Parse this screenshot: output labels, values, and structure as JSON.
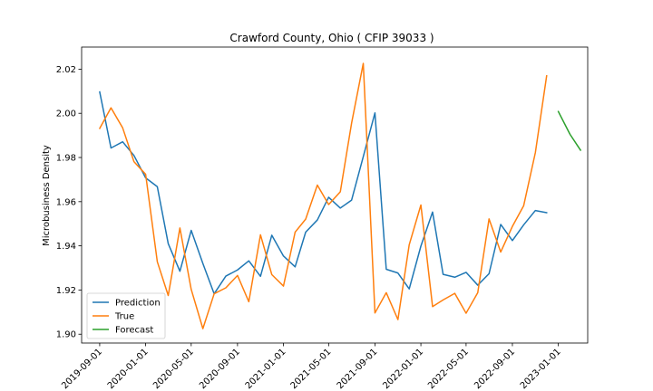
{
  "chart_data": {
    "type": "line",
    "title": "Crawford County, Ohio ( CFIP 39033 )",
    "xlabel": "",
    "ylabel": "Microbusiness Density",
    "x_axis_type": "date",
    "xlim": [
      "2019-07-15",
      "2023-03-20"
    ],
    "ylim": [
      1.896,
      2.03
    ],
    "yticks": [
      1.9,
      1.92,
      1.94,
      1.96,
      1.98,
      2.0,
      2.02
    ],
    "ytick_labels": [
      "1.90",
      "1.92",
      "1.94",
      "1.96",
      "1.98",
      "2.00",
      "2.02"
    ],
    "xticks": [
      "2019-09-01",
      "2020-01-01",
      "2020-05-01",
      "2020-09-01",
      "2021-01-01",
      "2021-05-01",
      "2021-09-01",
      "2022-01-01",
      "2022-05-01",
      "2022-09-01",
      "2023-01-01"
    ],
    "xtick_labels": [
      "2019-09-01",
      "2020-01-01",
      "2020-05-01",
      "2020-09-01",
      "2021-01-01",
      "2021-05-01",
      "2021-09-01",
      "2022-01-01",
      "2022-05-01",
      "2022-09-01",
      "2023-01-01"
    ],
    "grid": false,
    "legend_position": "lower-left",
    "series": [
      {
        "name": "Prediction",
        "color": "#1f77b4",
        "x": [
          "2019-09-01",
          "2019-10-01",
          "2019-11-01",
          "2019-12-01",
          "2020-01-01",
          "2020-02-01",
          "2020-03-01",
          "2020-04-01",
          "2020-05-01",
          "2020-06-01",
          "2020-07-01",
          "2020-08-01",
          "2020-09-01",
          "2020-10-01",
          "2020-11-01",
          "2020-12-01",
          "2021-01-01",
          "2021-02-01",
          "2021-03-01",
          "2021-04-01",
          "2021-05-01",
          "2021-06-01",
          "2021-07-01",
          "2021-08-01",
          "2021-09-01",
          "2021-10-01",
          "2021-11-01",
          "2021-12-01",
          "2022-01-01",
          "2022-02-01",
          "2022-03-01",
          "2022-04-01",
          "2022-05-01",
          "2022-06-01",
          "2022-07-01",
          "2022-08-01",
          "2022-09-01",
          "2022-10-01",
          "2022-11-01",
          "2022-12-01"
        ],
        "y": [
          2.0097,
          1.9843,
          1.9871,
          1.9809,
          1.9708,
          1.9668,
          1.941,
          1.9285,
          1.947,
          1.932,
          1.9183,
          1.9263,
          1.9291,
          1.9332,
          1.9262,
          1.9448,
          1.9354,
          1.9305,
          1.9462,
          1.9517,
          1.962,
          1.9571,
          1.9607,
          1.9804,
          2.0002,
          1.9294,
          1.9277,
          1.9205,
          1.9399,
          1.9553,
          1.9271,
          1.9258,
          1.928,
          1.9222,
          1.9274,
          1.9497,
          1.9424,
          1.9495,
          1.956,
          1.955
        ]
      },
      {
        "name": "True",
        "color": "#ff7f0e",
        "x": [
          "2019-09-01",
          "2019-10-01",
          "2019-11-01",
          "2019-12-01",
          "2020-01-01",
          "2020-02-01",
          "2020-03-01",
          "2020-04-01",
          "2020-05-01",
          "2020-06-01",
          "2020-07-01",
          "2020-08-01",
          "2020-09-01",
          "2020-10-01",
          "2020-11-01",
          "2020-12-01",
          "2021-01-01",
          "2021-02-01",
          "2021-03-01",
          "2021-04-01",
          "2021-05-01",
          "2021-06-01",
          "2021-07-01",
          "2021-08-01",
          "2021-09-01",
          "2021-10-01",
          "2021-11-01",
          "2021-12-01",
          "2022-01-01",
          "2022-02-01",
          "2022-03-01",
          "2022-04-01",
          "2022-05-01",
          "2022-06-01",
          "2022-07-01",
          "2022-08-01",
          "2022-09-01",
          "2022-10-01",
          "2022-11-01",
          "2022-12-01"
        ],
        "y": [
          1.9932,
          2.0025,
          1.9934,
          1.9781,
          1.9724,
          1.9328,
          1.9175,
          1.9481,
          1.9203,
          1.9025,
          1.9183,
          1.921,
          1.9266,
          1.9147,
          1.945,
          1.927,
          1.9218,
          1.9462,
          1.9521,
          1.9675,
          1.9587,
          1.9645,
          1.9956,
          2.0226,
          1.9096,
          1.9188,
          1.9066,
          1.9405,
          1.9585,
          1.9125,
          1.9155,
          1.9185,
          1.9095,
          1.9188,
          1.9522,
          1.9372,
          1.9488,
          1.9582,
          1.9822,
          2.017
        ]
      },
      {
        "name": "Forecast",
        "color": "#2ca02c",
        "x": [
          "2023-01-01",
          "2023-02-01",
          "2023-03-01"
        ],
        "y": [
          2.0008,
          1.9905,
          1.9833
        ]
      }
    ]
  }
}
